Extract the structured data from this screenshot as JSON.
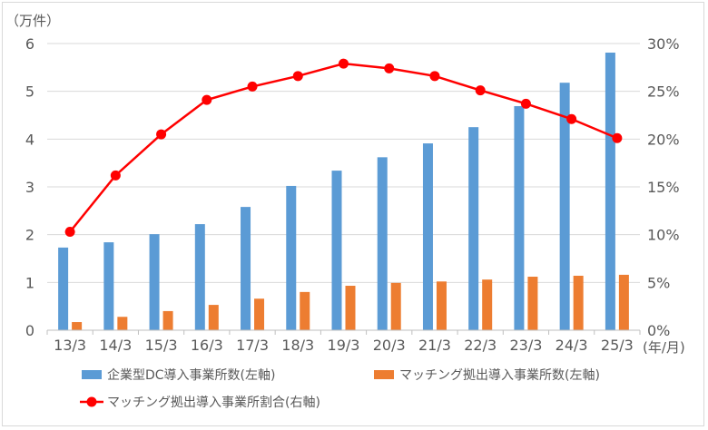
{
  "chart_data": {
    "type": "bar+line",
    "categories": [
      "13/3",
      "14/3",
      "15/3",
      "16/3",
      "17/3",
      "18/3",
      "19/3",
      "20/3",
      "21/3",
      "22/3",
      "23/3",
      "24/3",
      "25/3"
    ],
    "y_left": {
      "unit_label": "（万件）",
      "range": [
        0,
        6
      ],
      "ticks": [
        "0",
        "1",
        "2",
        "3",
        "4",
        "5",
        "6"
      ]
    },
    "y_right": {
      "range": [
        0,
        30
      ],
      "ticks": [
        "0%",
        "5%",
        "10%",
        "15%",
        "20%",
        "25%",
        "30%"
      ]
    },
    "x_unit_label": "(年/月)",
    "grid": true,
    "legend_placement": "bottom",
    "series": [
      {
        "name": "企業型DC導入事業所数(左軸)",
        "type": "bar",
        "axis": "left",
        "color": "#5b9bd5",
        "values": [
          1.73,
          1.84,
          2.01,
          2.22,
          2.58,
          3.02,
          3.34,
          3.62,
          3.91,
          4.25,
          4.69,
          5.18,
          5.81
        ]
      },
      {
        "name": "マッチング拠出導入事業所数(左軸)",
        "type": "bar",
        "axis": "left",
        "color": "#ed7d31",
        "values": [
          0.17,
          0.28,
          0.4,
          0.53,
          0.66,
          0.8,
          0.93,
          0.99,
          1.02,
          1.06,
          1.12,
          1.14,
          1.16
        ]
      },
      {
        "name": "マッチング拠出導入事業所割合(右軸)",
        "type": "line",
        "axis": "right",
        "color": "#ff0000",
        "values": [
          10.3,
          16.2,
          20.5,
          24.1,
          25.5,
          26.6,
          27.9,
          27.4,
          26.6,
          25.1,
          23.7,
          22.1,
          20.1
        ]
      }
    ]
  }
}
